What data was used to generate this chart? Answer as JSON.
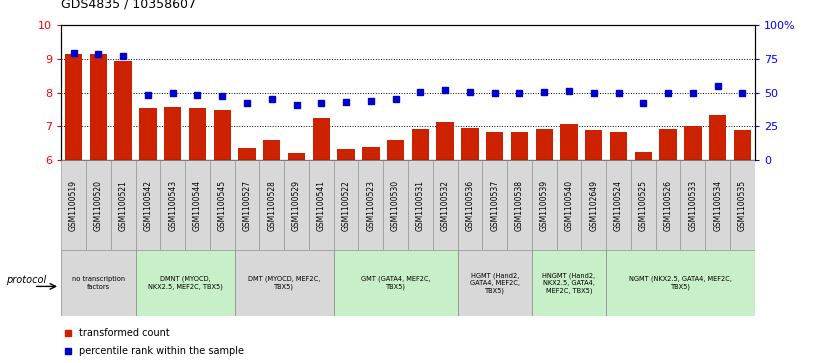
{
  "title": "GDS4835 / 10358607",
  "x_labels": [
    "GSM1100519",
    "GSM1100520",
    "GSM1100521",
    "GSM1100542",
    "GSM1100543",
    "GSM1100544",
    "GSM1100545",
    "GSM1100527",
    "GSM1100528",
    "GSM1100529",
    "GSM1100541",
    "GSM1100522",
    "GSM1100523",
    "GSM1100530",
    "GSM1100531",
    "GSM1100532",
    "GSM1100536",
    "GSM1100537",
    "GSM1100538",
    "GSM1100539",
    "GSM1100540",
    "GSM1102649",
    "GSM1100524",
    "GSM1100525",
    "GSM1100526",
    "GSM1100533",
    "GSM1100534",
    "GSM1100535"
  ],
  "bar_values": [
    9.15,
    9.15,
    8.93,
    7.55,
    7.58,
    7.55,
    7.47,
    6.35,
    6.59,
    6.19,
    7.25,
    6.32,
    6.38,
    6.59,
    6.92,
    7.12,
    6.95,
    6.82,
    6.82,
    6.92,
    7.05,
    6.9,
    6.82,
    6.22,
    6.92,
    7.0,
    7.32,
    6.88
  ],
  "blue_values": [
    9.18,
    9.14,
    9.09,
    7.92,
    8.0,
    7.93,
    7.9,
    7.68,
    7.82,
    7.62,
    7.7,
    7.72,
    7.76,
    7.82,
    8.02,
    8.08,
    8.02,
    7.98,
    7.99,
    8.02,
    8.05,
    8.0,
    7.98,
    7.68,
    7.98,
    8.0,
    8.2,
    8.0
  ],
  "bar_color": "#cc2200",
  "blue_color": "#0000cc",
  "ylim_left": [
    6,
    10
  ],
  "ylim_right": [
    0,
    100
  ],
  "yticks_left": [
    6,
    7,
    8,
    9,
    10
  ],
  "yticks_right": [
    0,
    25,
    50,
    75,
    100
  ],
  "ytick_labels_right": [
    "0",
    "25",
    "50",
    "75",
    "100%"
  ],
  "protocol_groups": [
    {
      "label": "no transcription\nfactors",
      "start": 0,
      "end": 3,
      "color": "#d8d8d8"
    },
    {
      "label": "DMNT (MYOCD,\nNKX2.5, MEF2C, TBX5)",
      "start": 3,
      "end": 7,
      "color": "#c8f0c8"
    },
    {
      "label": "DMT (MYOCD, MEF2C,\nTBX5)",
      "start": 7,
      "end": 11,
      "color": "#d8d8d8"
    },
    {
      "label": "GMT (GATA4, MEF2C,\nTBX5)",
      "start": 11,
      "end": 16,
      "color": "#c8f0c8"
    },
    {
      "label": "HGMT (Hand2,\nGATA4, MEF2C,\nTBX5)",
      "start": 16,
      "end": 19,
      "color": "#d8d8d8"
    },
    {
      "label": "HNGMT (Hand2,\nNKX2.5, GATA4,\nMEF2C, TBX5)",
      "start": 19,
      "end": 22,
      "color": "#c8f0c8"
    },
    {
      "label": "NGMT (NKX2.5, GATA4, MEF2C,\nTBX5)",
      "start": 22,
      "end": 28,
      "color": "#c8f0c8"
    }
  ],
  "xlabel_bg": "#d8d8d8",
  "cell_border_color": "#888888",
  "background_color": "#ffffff"
}
